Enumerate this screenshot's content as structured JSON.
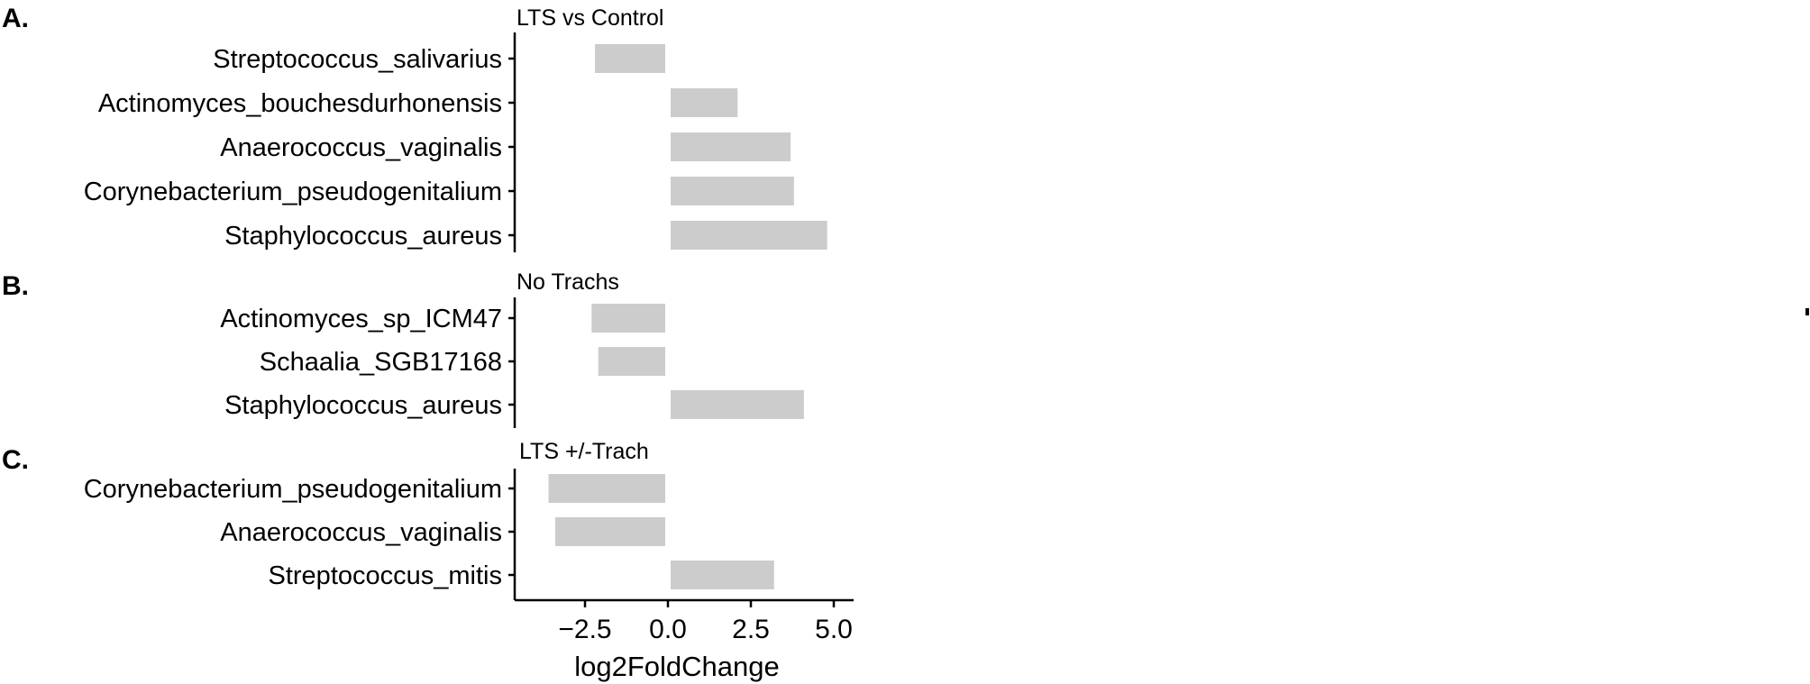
{
  "chart_data": [
    {
      "type": "bar",
      "orientation": "horizontal",
      "panel": "A.",
      "title": "LTS vs Control",
      "categories": [
        "Streptococcus_salivarius",
        "Actinomyces_bouchesdurhonensis",
        "Anaerococcus_vaginalis",
        "Corynebacterium_pseudogenitalium",
        "Staphylococcus_aureus"
      ],
      "values": [
        -2.2,
        2.1,
        3.7,
        3.8,
        4.8
      ],
      "color": "#cccccc"
    },
    {
      "type": "bar",
      "orientation": "horizontal",
      "panel": "B.",
      "title": "No Trachs",
      "categories": [
        "Actinomyces_sp_ICM47",
        "Schaalia_SGB17168",
        "Staphylococcus_aureus"
      ],
      "values": [
        -2.3,
        -2.1,
        4.1
      ],
      "color": "#cccccc"
    },
    {
      "type": "bar",
      "orientation": "horizontal",
      "panel": "C.",
      "title": "LTS +/-Trach",
      "categories": [
        "Corynebacterium_pseudogenitalium",
        "Anaerococcus_vaginalis",
        "Streptococcus_mitis"
      ],
      "values": [
        -3.6,
        -3.4,
        3.2
      ],
      "color": "#cccccc"
    }
  ],
  "x_axis": {
    "label": "log2FoldChange",
    "ticks": [
      -2.5,
      0.0,
      2.5,
      5.0
    ],
    "tick_labels": [
      "−2.5",
      "0.0",
      "2.5",
      "5.0"
    ],
    "xlim": [
      -4.5,
      5.7
    ]
  },
  "bar_color": "#cccccc"
}
